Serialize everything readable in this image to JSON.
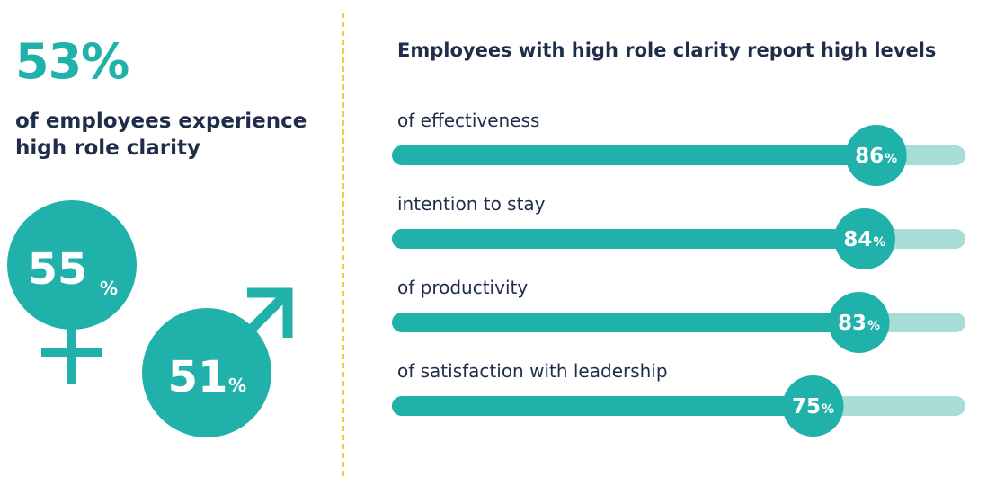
{
  "headline": {
    "percent": "53%",
    "text": "of employees experience high role clarity"
  },
  "gender": {
    "female": {
      "value": 55,
      "unit": "%",
      "symbol": "female-symbol"
    },
    "male": {
      "value": 51,
      "unit": "%",
      "symbol": "male-symbol"
    }
  },
  "colors": {
    "accent": "#20b2aa",
    "track": "#a8dcd7",
    "text": "#1f2d4a",
    "divider": "#f5c84a"
  },
  "chart_data": {
    "type": "bar",
    "orientation": "horizontal",
    "title": "Employees with high role clarity report high levels",
    "categories": [
      "of effectiveness",
      "intention to stay",
      "of productivity",
      "of satisfaction with leadership"
    ],
    "values": [
      86,
      84,
      83,
      75
    ],
    "unit": "%",
    "xlim": [
      0,
      100
    ]
  }
}
